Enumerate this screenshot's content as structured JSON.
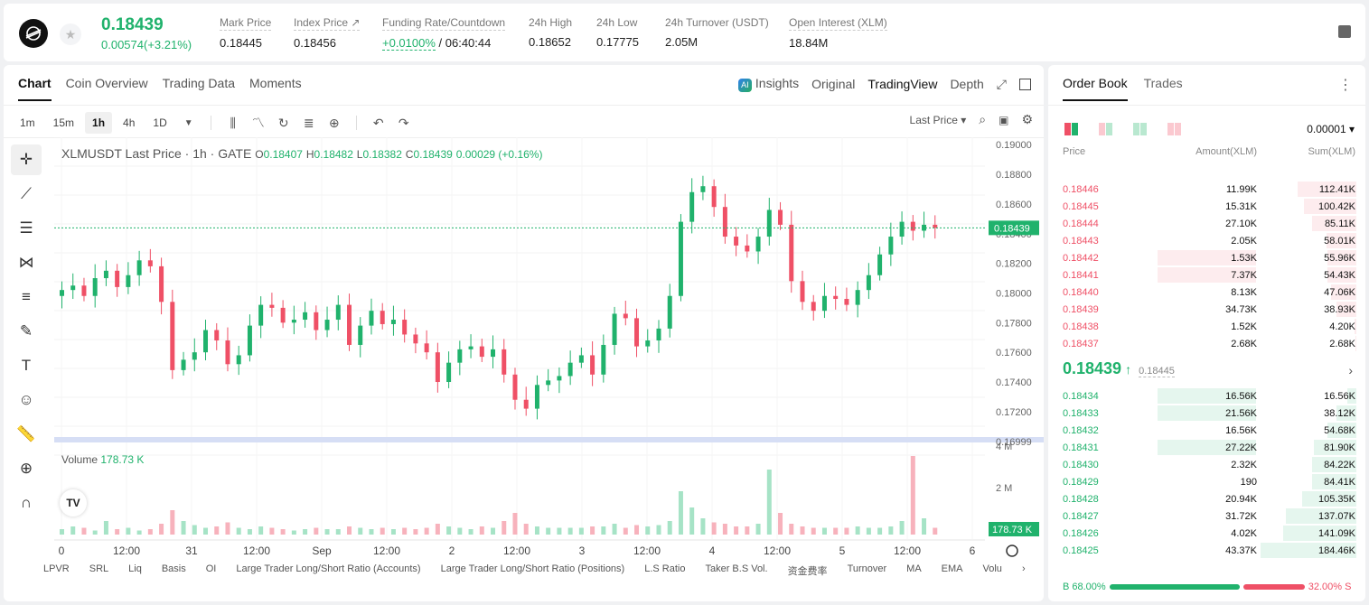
{
  "header": {
    "price": "0.18439",
    "change": "0.00574(+3.21%)",
    "stats": [
      {
        "label": "Mark Price",
        "value": "0.18445"
      },
      {
        "label": "Index Price ↗",
        "value": "0.18456"
      },
      {
        "label": "Funding Rate/Countdown",
        "value": "+0.0100%",
        "extra": " / 06:40:44"
      },
      {
        "label": "24h High",
        "value": "0.18652"
      },
      {
        "label": "24h Low",
        "value": "0.17775"
      },
      {
        "label": "24h Turnover (USDT)",
        "value": "2.05M"
      },
      {
        "label": "Open Interest (XLM)",
        "value": "18.84M"
      }
    ]
  },
  "chart_tabs": {
    "left": [
      "Chart",
      "Coin Overview",
      "Trading Data",
      "Moments"
    ],
    "right": [
      "Insights",
      "Original",
      "TradingView",
      "Depth"
    ],
    "ai_badge": "AI"
  },
  "toolbar": {
    "intervals": [
      "1m",
      "15m",
      "1h",
      "4h",
      "1D"
    ],
    "price_type": "Last Price"
  },
  "legend": {
    "symbol": "XLMUSDT Last Price · 1h · GATE",
    "o_label": "O",
    "o": "0.18407",
    "h_label": "H",
    "h": "0.18482",
    "l_label": "L",
    "l": "0.18382",
    "c_label": "C",
    "c": "0.18439",
    "change": "0.00029 (+0.16%)",
    "volume_label": "Volume",
    "volume_value": "178.73 K"
  },
  "chart_data": {
    "type": "candlestick",
    "price_axis": {
      "ticks": [
        "0.19000",
        "0.18800",
        "0.18600",
        "0.18400",
        "0.18200",
        "0.18000",
        "0.17800",
        "0.17600",
        "0.17400",
        "0.17200",
        "0.16999"
      ],
      "last_price_label": "0.18439",
      "last_price": 0.18439
    },
    "volume_axis": {
      "ticks": [
        "4 M",
        "2 M"
      ],
      "last_label": "178.73 K"
    },
    "time_axis": [
      "0",
      "12:00",
      "31",
      "12:00",
      "Sep",
      "12:00",
      "2",
      "12:00",
      "3",
      "12:00",
      "4",
      "12:00",
      "5",
      "12:00",
      "6"
    ],
    "close_path": [
      0.1802,
      0.1805,
      0.1798,
      0.181,
      0.1815,
      0.1804,
      0.1812,
      0.1822,
      0.1818,
      0.1794,
      0.1748,
      0.1755,
      0.176,
      0.1775,
      0.1768,
      0.1752,
      0.1758,
      0.1778,
      0.1792,
      0.179,
      0.178,
      0.1782,
      0.1787,
      0.1775,
      0.1782,
      0.1792,
      0.1765,
      0.1778,
      0.1788,
      0.1779,
      0.1782,
      0.1772,
      0.1766,
      0.176,
      0.174,
      0.1753,
      0.1762,
      0.1764,
      0.1757,
      0.1762,
      0.1745,
      0.1728,
      0.1722,
      0.1738,
      0.1741,
      0.1744,
      0.1753,
      0.1758,
      0.1745,
      0.1765,
      0.1786,
      0.1783,
      0.1764,
      0.1768,
      0.1776,
      0.1798,
      0.1848,
      0.1868,
      0.1872,
      0.1858,
      0.1838,
      0.1832,
      0.1828,
      0.1838,
      0.1856,
      0.1846,
      0.1808,
      0.1794,
      0.1788,
      0.1798,
      0.1796,
      0.1792,
      0.1802,
      0.1812,
      0.1826,
      0.1838,
      0.1848,
      0.1842,
      0.1846,
      0.18439
    ],
    "volume_heights": [
      0.04,
      0.06,
      0.05,
      0.03,
      0.1,
      0.04,
      0.05,
      0.03,
      0.04,
      0.08,
      0.18,
      0.1,
      0.07,
      0.05,
      0.06,
      0.09,
      0.05,
      0.04,
      0.06,
      0.05,
      0.04,
      0.03,
      0.04,
      0.05,
      0.04,
      0.04,
      0.06,
      0.05,
      0.04,
      0.05,
      0.04,
      0.05,
      0.04,
      0.05,
      0.08,
      0.06,
      0.05,
      0.04,
      0.06,
      0.05,
      0.1,
      0.16,
      0.08,
      0.06,
      0.05,
      0.05,
      0.05,
      0.05,
      0.06,
      0.06,
      0.08,
      0.05,
      0.07,
      0.06,
      0.07,
      0.1,
      0.32,
      0.2,
      0.12,
      0.09,
      0.08,
      0.06,
      0.06,
      0.08,
      0.48,
      0.16,
      0.08,
      0.06,
      0.05,
      0.05,
      0.05,
      0.05,
      0.06,
      0.05,
      0.05,
      0.06,
      0.1,
      0.58,
      0.12,
      0.05
    ]
  },
  "bottom_indicators": [
    "LPVR",
    "SRL",
    "Liq",
    "Basis",
    "OI",
    "Large Trader Long/Short Ratio (Accounts)",
    "Large Trader Long/Short Ratio (Positions)",
    "L.S Ratio",
    "Taker B.S Vol.",
    "资金费率",
    "Turnover",
    "MA",
    "EMA",
    "Volu"
  ],
  "orderbook": {
    "tabs": [
      "Order Book",
      "Trades"
    ],
    "precision": "0.00001",
    "headers": [
      "Price",
      "Amount(XLM)",
      "Sum(XLM)"
    ],
    "asks": [
      {
        "price": "0.18446",
        "amount": "11.99K",
        "sum": "112.41K",
        "depth": 0.61,
        "hl": 0
      },
      {
        "price": "0.18445",
        "amount": "15.31K",
        "sum": "100.42K",
        "depth": 0.55,
        "hl": 0
      },
      {
        "price": "0.18444",
        "amount": "27.10K",
        "sum": "85.11K",
        "depth": 0.46,
        "hl": 0
      },
      {
        "price": "0.18443",
        "amount": "2.05K",
        "sum": "58.01K",
        "depth": 0.31,
        "hl": 0
      },
      {
        "price": "0.18442",
        "amount": "1.53K",
        "sum": "55.96K",
        "depth": 0.3,
        "hl": 0.42
      },
      {
        "price": "0.18441",
        "amount": "7.37K",
        "sum": "54.43K",
        "depth": 0.3,
        "hl": 0.42
      },
      {
        "price": "0.18440",
        "amount": "8.13K",
        "sum": "47.06K",
        "depth": 0.26,
        "hl": 0
      },
      {
        "price": "0.18439",
        "amount": "34.73K",
        "sum": "38.93K",
        "depth": 0.21,
        "hl": 0
      },
      {
        "price": "0.18438",
        "amount": "1.52K",
        "sum": "4.20K",
        "depth": 0.02,
        "hl": 0
      },
      {
        "price": "0.18437",
        "amount": "2.68K",
        "sum": "2.68K",
        "depth": 0.01,
        "hl": 0
      }
    ],
    "mid": {
      "price": "0.18439",
      "arrow": "↑",
      "mark": "0.18445"
    },
    "bids": [
      {
        "price": "0.18434",
        "amount": "16.56K",
        "sum": "16.56K",
        "depth": 0.09,
        "hl": 0.42
      },
      {
        "price": "0.18433",
        "amount": "21.56K",
        "sum": "38.12K",
        "depth": 0.21,
        "hl": 0.42
      },
      {
        "price": "0.18432",
        "amount": "16.56K",
        "sum": "54.68K",
        "depth": 0.3,
        "hl": 0
      },
      {
        "price": "0.18431",
        "amount": "27.22K",
        "sum": "81.90K",
        "depth": 0.44,
        "hl": 0.42
      },
      {
        "price": "0.18430",
        "amount": "2.32K",
        "sum": "84.22K",
        "depth": 0.46,
        "hl": 0
      },
      {
        "price": "0.18429",
        "amount": "190",
        "sum": "84.41K",
        "depth": 0.46,
        "hl": 0
      },
      {
        "price": "0.18428",
        "amount": "20.94K",
        "sum": "105.35K",
        "depth": 0.57,
        "hl": 0
      },
      {
        "price": "0.18427",
        "amount": "31.72K",
        "sum": "137.07K",
        "depth": 0.74,
        "hl": 0
      },
      {
        "price": "0.18426",
        "amount": "4.02K",
        "sum": "141.09K",
        "depth": 0.76,
        "hl": 0
      },
      {
        "price": "0.18425",
        "amount": "43.37K",
        "sum": "184.46K",
        "depth": 1.0,
        "hl": 0
      }
    ],
    "ratio": {
      "buy": "B 68.00%",
      "sell": "32.00% S",
      "buy_pct": 68
    }
  },
  "colors": {
    "up": "#20b26c",
    "down": "#ef5066",
    "up_bg": "#e5f6ee",
    "down_bg": "#fdecee"
  }
}
